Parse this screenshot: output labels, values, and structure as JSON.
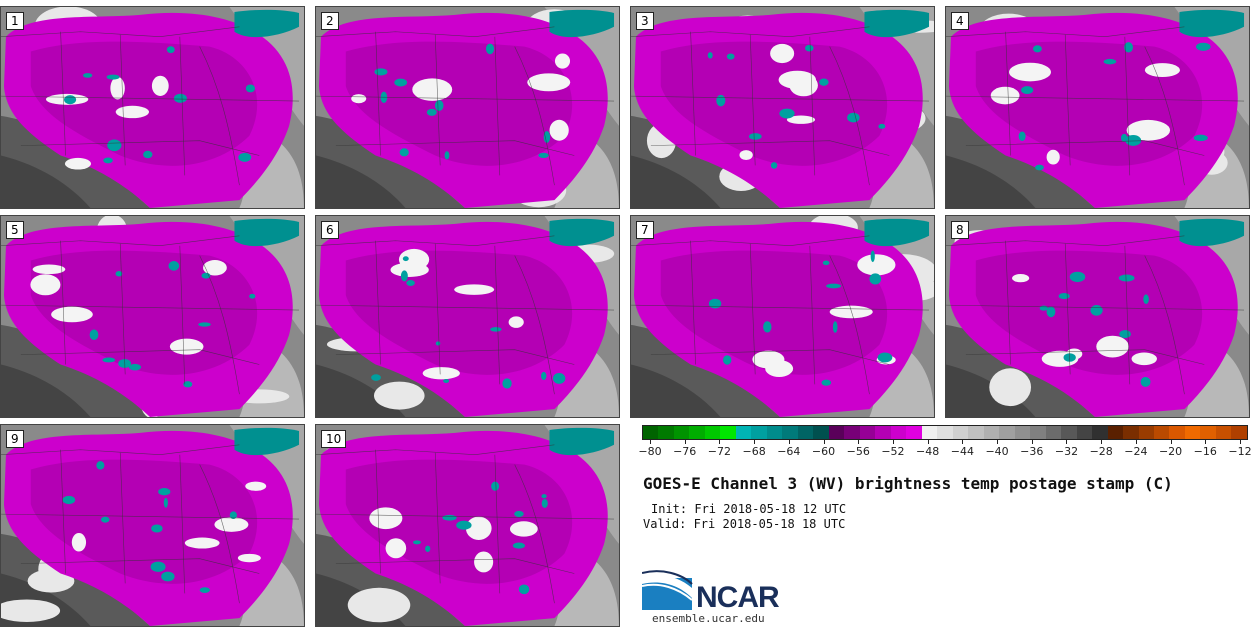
{
  "panels": [
    {
      "label": "1"
    },
    {
      "label": "2"
    },
    {
      "label": "3"
    },
    {
      "label": "4"
    },
    {
      "label": "5"
    },
    {
      "label": "6"
    },
    {
      "label": "7"
    },
    {
      "label": "8"
    },
    {
      "label": "9"
    },
    {
      "label": "10"
    }
  ],
  "colorbar": {
    "colors": [
      "#006400",
      "#007a00",
      "#009300",
      "#00ad00",
      "#00c800",
      "#00e600",
      "#00b4b4",
      "#00a0a0",
      "#008c8c",
      "#007a7a",
      "#006464",
      "#00504f",
      "#5a005a",
      "#780078",
      "#960096",
      "#b400b4",
      "#cc00cc",
      "#e000e0",
      "#f0f0f0",
      "#e0e0e0",
      "#d0d0d0",
      "#c0c0c0",
      "#b0b0b0",
      "#a0a0a0",
      "#909090",
      "#808080",
      "#6c6c6c",
      "#585858",
      "#444444",
      "#303030",
      "#5a2000",
      "#7a2e00",
      "#9a3c00",
      "#ba4a00",
      "#da5800",
      "#f06a00",
      "#e06000",
      "#c85000",
      "#b04000"
    ],
    "ticks": [
      "−80",
      "−76",
      "−72",
      "−68",
      "−64",
      "−60",
      "−56",
      "−52",
      "−48",
      "−44",
      "−40",
      "−36",
      "−32",
      "−28",
      "−24",
      "−20",
      "−16",
      "−12"
    ]
  },
  "title": "GOES-E Channel 3 (WV) brightness temp postage stamp (C)",
  "init": "Init: Fri 2018-05-18 12 UTC",
  "valid": "Valid: Fri 2018-05-18 18 UTC",
  "logo": {
    "text": "NCAR",
    "url": "ensemble.ucar.edu"
  }
}
